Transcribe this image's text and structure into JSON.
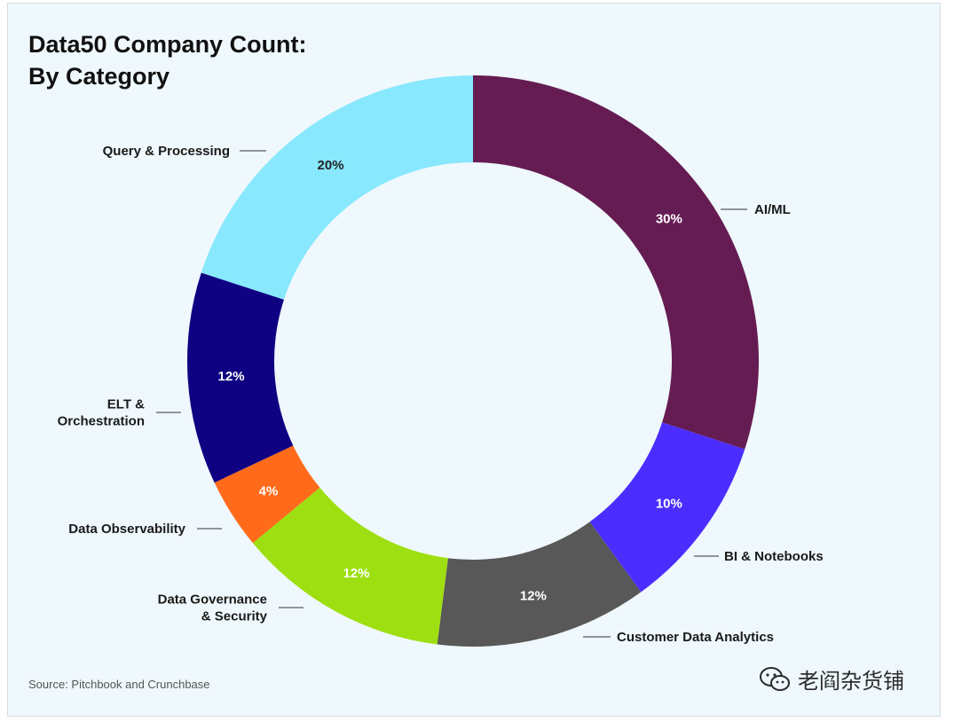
{
  "header": {
    "title_line1": "Data50 Company Count:",
    "title_line2": "By Category"
  },
  "footer": {
    "source": "Source: Pitchbook and Crunchbase",
    "watermark": "老阎杂货铺",
    "watermark_icon": "wechat-icon"
  },
  "colors": {
    "background": "#eff8fc",
    "label_text": "#1a1a1a",
    "pct_light": "#ffffff",
    "pct_dark": "#222222"
  },
  "chart_data": {
    "type": "pie",
    "variant": "donut",
    "title": "Data50 Company Count: By Category",
    "unit": "%",
    "start_angle": "12 o'clock",
    "direction": "clockwise",
    "legend": "none (leader-line labels)",
    "slices": [
      {
        "label": "AI/ML",
        "value": 30,
        "display": "30%",
        "color": "#651c53",
        "pct_color": "#ffffff"
      },
      {
        "label": "BI & Notebooks",
        "value": 10,
        "display": "10%",
        "color": "#4c2dff",
        "pct_color": "#ffffff"
      },
      {
        "label": "Customer Data Analytics",
        "value": 12,
        "display": "12%",
        "color": "#585858",
        "pct_color": "#ffffff"
      },
      {
        "label": "Data Governance & Security",
        "lines": [
          "Data Governance",
          "& Security"
        ],
        "value": 12,
        "display": "12%",
        "color": "#9ddf10",
        "pct_color": "#ffffff"
      },
      {
        "label": "Data Observability",
        "value": 4,
        "display": "4%",
        "color": "#ff6b1a",
        "pct_color": "#ffffff"
      },
      {
        "label": "ELT & Orchestration",
        "lines": [
          "ELT &",
          "Orchestration"
        ],
        "value": 12,
        "display": "12%",
        "color": "#0f0182",
        "pct_color": "#ffffff"
      },
      {
        "label": "Query & Processing",
        "value": 20,
        "display": "20%",
        "color": "#88e8fe",
        "pct_color": "#222222"
      }
    ]
  }
}
